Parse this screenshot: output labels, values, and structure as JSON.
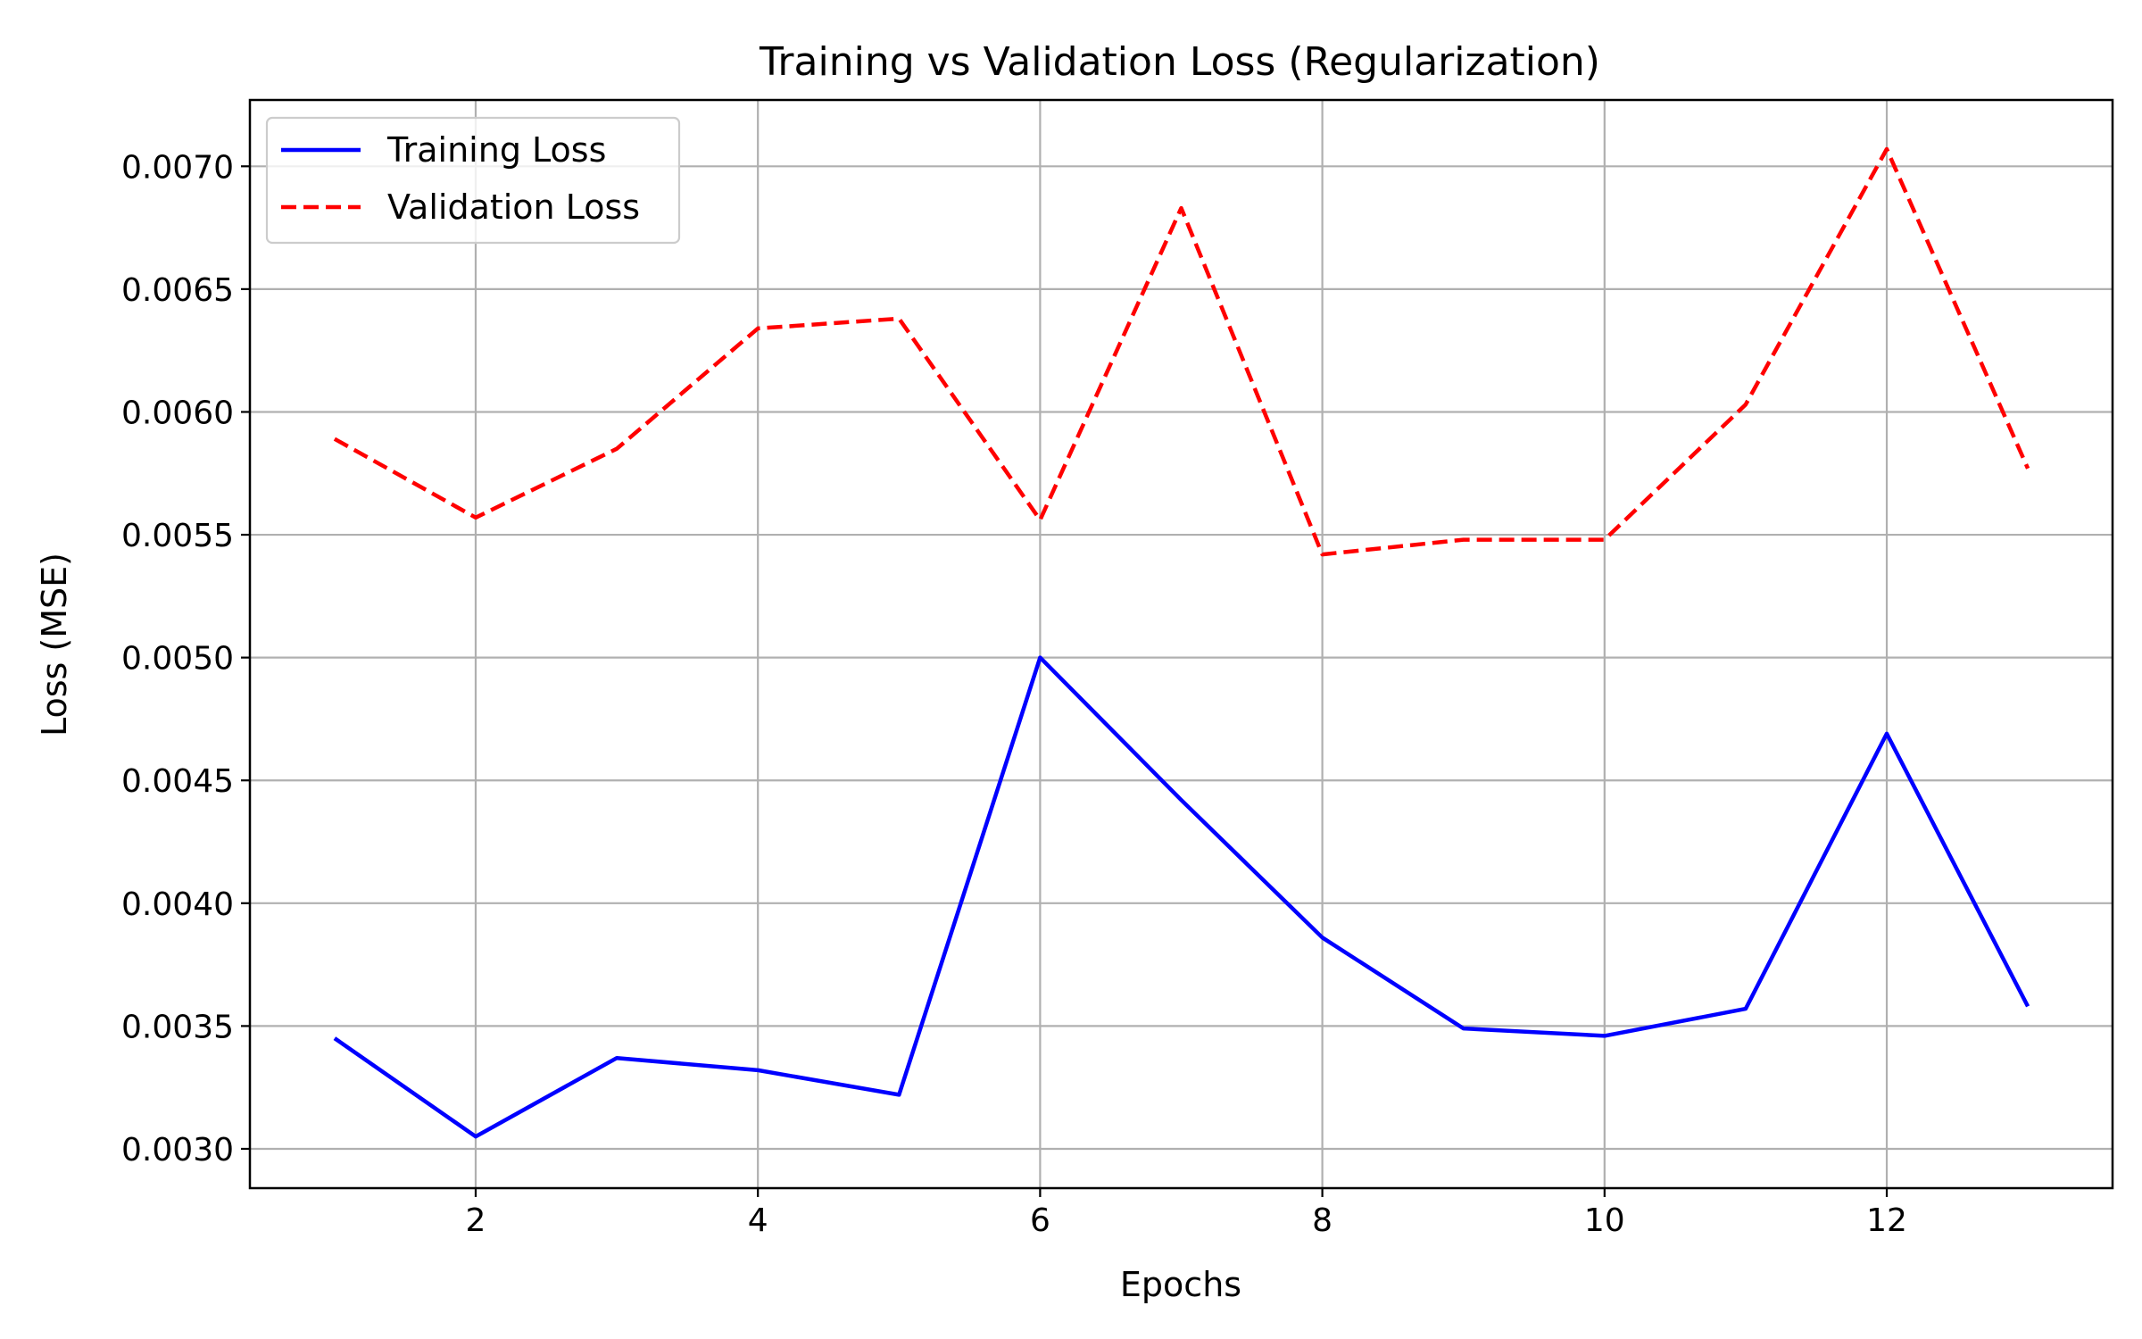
{
  "chart_data": {
    "type": "line",
    "title": "Training vs Validation Loss (Regularization)",
    "xlabel": "Epochs",
    "ylabel": "Loss (MSE)",
    "x": [
      1,
      2,
      3,
      4,
      5,
      6,
      7,
      8,
      9,
      10,
      11,
      12,
      13
    ],
    "xlim": [
      0.4,
      13.6
    ],
    "ylim": [
      0.00284,
      0.00727
    ],
    "xticks": [
      2,
      4,
      6,
      8,
      10,
      12
    ],
    "yticks": [
      0.003,
      0.0035,
      0.004,
      0.0045,
      0.005,
      0.0055,
      0.006,
      0.0065,
      0.007
    ],
    "ytick_labels": [
      "0.0030",
      "0.0035",
      "0.0040",
      "0.0045",
      "0.0050",
      "0.0055",
      "0.0060",
      "0.0065",
      "0.0070"
    ],
    "grid": true,
    "legend_position": "top-left",
    "series": [
      {
        "name": "Training Loss",
        "color": "#0000ff",
        "style": "solid",
        "values": [
          0.00345,
          0.00305,
          0.00337,
          0.00332,
          0.00322,
          0.005,
          0.00442,
          0.00386,
          0.00349,
          0.00346,
          0.00357,
          0.00469,
          0.00358
        ]
      },
      {
        "name": "Validation Loss",
        "color": "#ff0000",
        "style": "dashed",
        "values": [
          0.00589,
          0.00557,
          0.00585,
          0.00634,
          0.00638,
          0.00556,
          0.00683,
          0.00542,
          0.00548,
          0.00548,
          0.00603,
          0.00707,
          0.00577
        ]
      }
    ]
  }
}
